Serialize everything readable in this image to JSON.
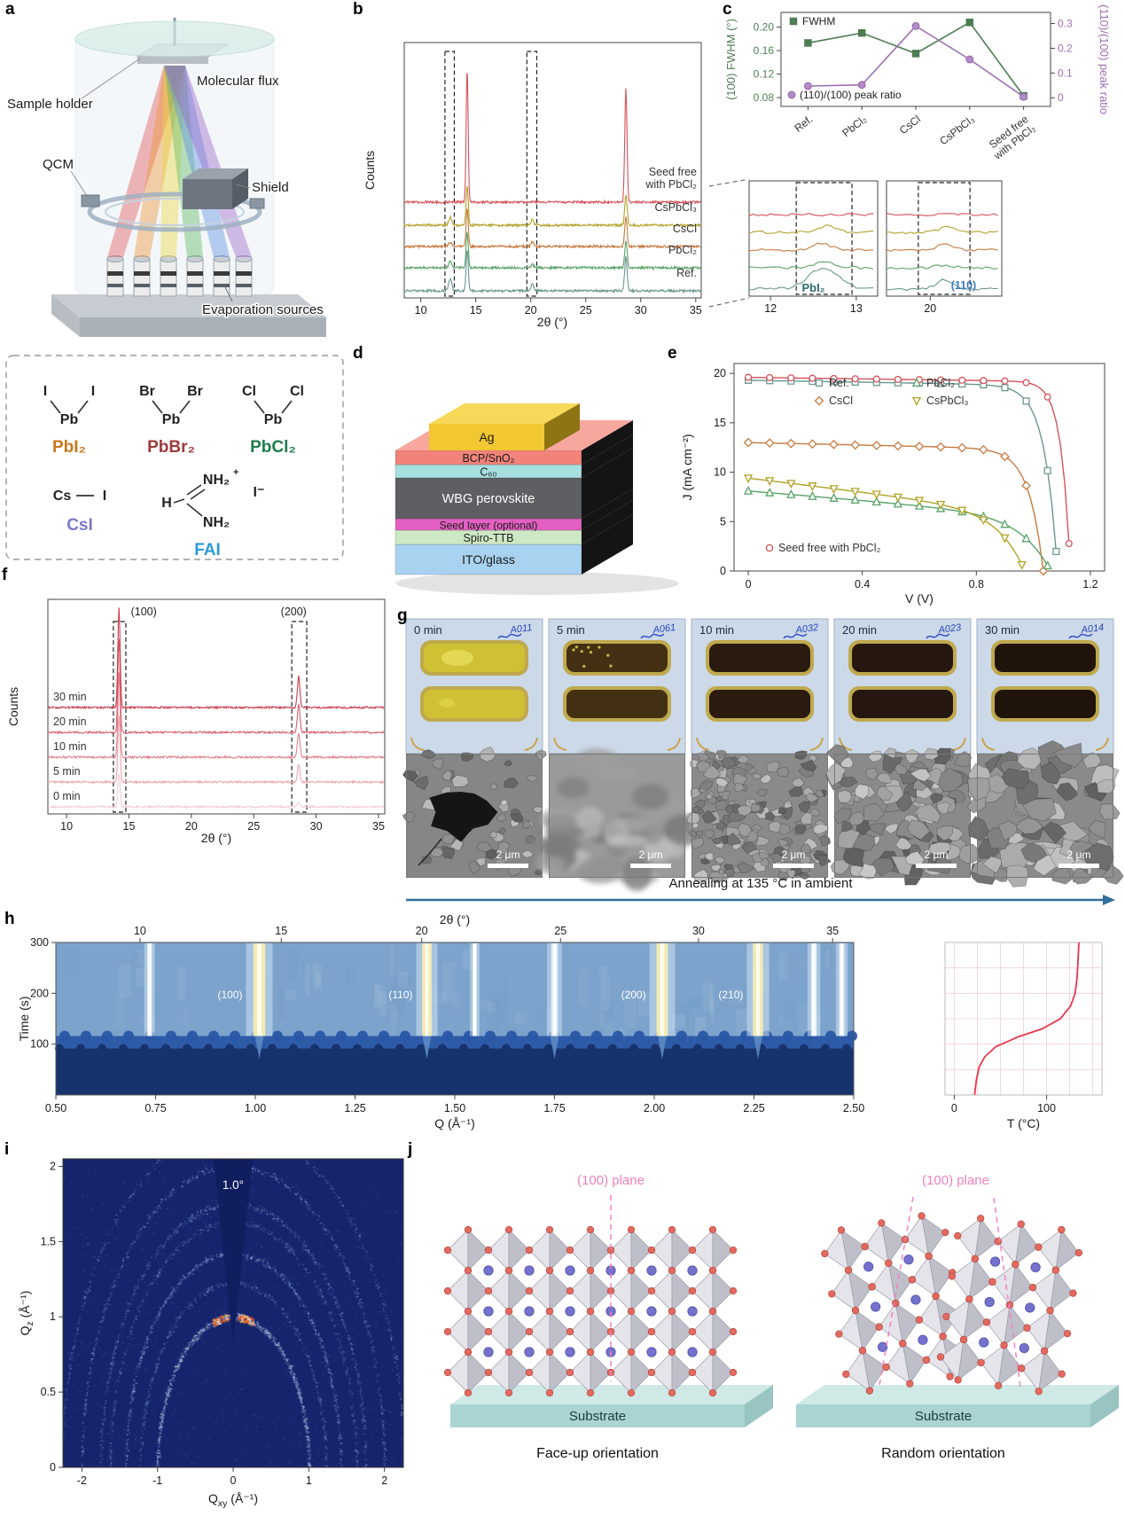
{
  "panels": {
    "a": "a",
    "b": "b",
    "c": "c",
    "d": "d",
    "e": "e",
    "f": "f",
    "g": "g",
    "h": "h",
    "i": "i",
    "j": "j"
  },
  "panel_a": {
    "labels": {
      "sample_holder": "Sample holder",
      "molecular_flux": "Molecular flux",
      "qcm": "QCM",
      "shield": "Shield",
      "evaporation_sources": "Evaporation sources"
    },
    "chemicals": {
      "pbi2": {
        "l": "I",
        "r": "I",
        "m": "Pb",
        "label": "PbI₂",
        "color": "#c8781e"
      },
      "pbbr2": {
        "l": "Br",
        "r": "Br",
        "m": "Pb",
        "label": "PbBr₂",
        "color": "#9c3a3a"
      },
      "pbcl2": {
        "l": "Cl",
        "r": "Cl",
        "m": "Pb",
        "label": "PbCl₂",
        "color": "#1f7d49"
      },
      "csi": {
        "l": "Cs",
        "r": "I",
        "label": "CsI",
        "color": "#7a7ac9"
      },
      "fai": {
        "h": "H",
        "n_top": "NH₂",
        "plus": "+",
        "n_bot": "NH₂",
        "iodide": "I⁻",
        "label": "FAI",
        "color": "#2b9bd7"
      }
    }
  },
  "panel_d": {
    "layers": [
      {
        "name": "ITO/glass",
        "color": "#a8d2f0",
        "light": "#c4e2f8",
        "text": "#1a1a1a",
        "th": 34,
        "fs": 14
      },
      {
        "name": "Spiro-TTB",
        "color": "#cde8c4",
        "light": "#e0f2da",
        "text": "#1a1a1a",
        "th": 16,
        "fs": 12.5
      },
      {
        "name": "Seed layer (optional)",
        "color": "#e360c2",
        "light": "#f085d5",
        "text": "#1a1a1a",
        "th": 13,
        "fs": 12
      },
      {
        "name": "WBG perovskite",
        "color": "#5e5f63",
        "light": "#77787d",
        "text": "#ffffff",
        "th": 46,
        "fs": 14.5
      },
      {
        "name": "C₆₀",
        "color": "#a7dee0",
        "light": "#c2ecee",
        "text": "#1a1a1a",
        "th": 15,
        "fs": 12.5
      },
      {
        "name": "BCP/SnO₂",
        "color": "#f2837a",
        "light": "#f8a79f",
        "text": "#1a1a1a",
        "th": 16,
        "fs": 12.5
      },
      {
        "name": "Ag",
        "color": "#f2c832",
        "light": "#f7d858",
        "text": "#1a1a1a",
        "th": 30,
        "fs": 14
      }
    ]
  },
  "panel_g": {
    "times": [
      "0 min",
      "5 min",
      "10 min",
      "20 min",
      "30 min"
    ],
    "film_colors": [
      "#cfc133",
      "#433012",
      "#2b1b0e",
      "#251710",
      "#201309"
    ],
    "sem_styles": [
      "pinhole",
      "melt",
      "grains_fine",
      "grains_med",
      "grains_coarse"
    ],
    "marks": [
      "A011",
      "A061",
      "A032",
      "A023",
      "A014"
    ],
    "scale_bar": "2 μm",
    "arrow_label": "Annealing at 135 °C in ambient"
  },
  "panel_j": {
    "plane_label": "(100) plane",
    "substrate_label": "Substrate",
    "left_caption": "Face-up orientation",
    "right_caption": "Random orientation",
    "colors": {
      "plane": "#f080c0",
      "oct_light": "#e4e4ea",
      "oct_dark": "#bfbfca",
      "oct_edge": "#9c9ca8",
      "halide": "#e4695e",
      "halide_edge": "#b14a42",
      "cation": "#7472cc",
      "cation_edge": "#4f4da8",
      "sub_top": "#cfe9e7",
      "sub_front": "#a9d4d2",
      "sub_side": "#98c4c2"
    }
  },
  "chart_data": {
    "b": {
      "type": "line",
      "xlabel": "2θ (°)",
      "ylabel": "Counts",
      "xlim": [
        8.5,
        35.5
      ],
      "xticks": [
        10,
        15,
        20,
        25,
        30,
        35
      ],
      "dashed_regions": [
        [
          12.2,
          13.05
        ],
        [
          19.65,
          20.55
        ]
      ],
      "series": [
        {
          "name": "Ref.",
          "color": "#6a9791",
          "base": 0,
          "noise": 1.3,
          "peaks": [
            [
              12.68,
              13,
              0.14
            ],
            [
              14.22,
              46,
              0.1
            ],
            [
              20.15,
              7,
              0.13
            ],
            [
              28.65,
              38,
              0.11
            ]
          ]
        },
        {
          "name": "PbCl₂",
          "color": "#59a368",
          "base": 26,
          "noise": 1.3,
          "peaks": [
            [
              12.68,
              7,
              0.13
            ],
            [
              14.22,
              40,
              0.1
            ],
            [
              20.15,
              4,
              0.12
            ],
            [
              28.65,
              30,
              0.11
            ]
          ]
        },
        {
          "name": "CsCl",
          "color": "#c87a40",
          "base": 50,
          "noise": 1.3,
          "peaks": [
            [
              12.68,
              5,
              0.13
            ],
            [
              14.22,
              42,
              0.1
            ],
            [
              20.15,
              6,
              0.12
            ],
            [
              28.65,
              33,
              0.11
            ]
          ]
        },
        {
          "name": "CsPbCl₃",
          "color": "#b2a32b",
          "base": 74,
          "noise": 1.3,
          "peaks": [
            [
              12.68,
              9,
              0.13
            ],
            [
              14.22,
              44,
              0.1
            ],
            [
              20.15,
              7,
              0.12
            ],
            [
              28.65,
              34,
              0.11
            ]
          ]
        },
        {
          "name": "Seed free|with PbCl₂",
          "color": "#d5525a",
          "base": 100,
          "noise": 1.3,
          "peaks": [
            [
              14.22,
              150,
              0.09
            ],
            [
              28.65,
              128,
              0.1
            ]
          ]
        }
      ]
    },
    "c": {
      "type": "line",
      "categories": [
        "Ref.",
        "PbCl₂",
        "CsCl",
        "CsPbCl₃",
        "Seed free|with PbCl₂"
      ],
      "left": {
        "label": "(100) FWHM (°)",
        "legend": "FWHM",
        "color": "#4f7d52",
        "ticks": [
          0.08,
          0.12,
          0.16,
          0.2
        ],
        "lim": [
          0.065,
          0.225
        ],
        "values": [
          0.173,
          0.19,
          0.155,
          0.208,
          0.083
        ]
      },
      "right": {
        "label": "(110)/(100) peak ratio",
        "legend": "(110)/(100) peak ratio",
        "color": "#9a6fb0",
        "fill": "#b48cc8",
        "ticks": [
          0,
          0.1,
          0.2,
          0.3
        ],
        "lim": [
          -0.035,
          0.345
        ],
        "values": [
          0.047,
          0.052,
          0.29,
          0.155,
          0.004
        ]
      }
    },
    "c_zoom1": {
      "xlim": [
        11.75,
        13.25
      ],
      "xticks": [
        12,
        13
      ],
      "dashed_regions": [
        [
          12.3,
          12.95
        ]
      ],
      "annotation": "PbI₂",
      "annotation_color": "#2e6e6e",
      "series": [
        {
          "name": "Ref.",
          "color": "#6a9791",
          "base": 0,
          "noise": 1.5,
          "peaks": [
            [
              12.62,
              24,
              0.17
            ]
          ]
        },
        {
          "name": "PbCl₂",
          "color": "#59a368",
          "base": 24,
          "noise": 1.5,
          "peaks": [
            [
              12.62,
              6,
              0.12
            ]
          ]
        },
        {
          "name": "CsCl",
          "color": "#c87a40",
          "base": 44,
          "noise": 1.5,
          "peaks": [
            [
              12.6,
              8,
              0.1
            ]
          ]
        },
        {
          "name": "CsPbCl₃",
          "color": "#b2a32b",
          "base": 64,
          "noise": 1.5,
          "peaks": [
            [
              12.65,
              7,
              0.1
            ]
          ]
        },
        {
          "name": "Seed free with PbCl₂",
          "color": "#d5525a",
          "base": 84,
          "noise": 1.5,
          "peaks": []
        }
      ]
    },
    "c_zoom2": {
      "xlim": [
        19.45,
        20.9
      ],
      "xticks": [
        20
      ],
      "dashed_regions": [
        [
          19.85,
          20.5
        ]
      ],
      "annotation": "(110)",
      "annotation_color": "#3b78c2",
      "series": [
        {
          "name": "Ref.",
          "color": "#6a9791",
          "base": 0,
          "noise": 1.5,
          "peaks": [
            [
              20.18,
              11,
              0.1
            ]
          ]
        },
        {
          "name": "PbCl₂",
          "color": "#59a368",
          "base": 24,
          "noise": 1.5,
          "peaks": [
            [
              20.18,
              3,
              0.1
            ]
          ]
        },
        {
          "name": "CsCl",
          "color": "#c87a40",
          "base": 44,
          "noise": 1.5,
          "peaks": [
            [
              20.18,
              7,
              0.09
            ]
          ]
        },
        {
          "name": "CsPbCl₃",
          "color": "#b2a32b",
          "base": 64,
          "noise": 1.5,
          "peaks": [
            [
              20.2,
              6,
              0.09
            ]
          ]
        },
        {
          "name": "Seed free with PbCl₂",
          "color": "#d5525a",
          "base": 84,
          "noise": 1.5,
          "peaks": []
        }
      ]
    },
    "e": {
      "type": "line",
      "xlabel": "V (V)",
      "ylabel": "J (mA cm⁻²)",
      "xlim": [
        -0.05,
        1.25
      ],
      "ylim": [
        0,
        21
      ],
      "xticks": [
        0,
        0.4,
        0.8,
        1.2
      ],
      "yticks": [
        0,
        5,
        10,
        15,
        20
      ],
      "series": [
        {
          "name": "Ref.",
          "color": "#6a9791",
          "marker": "square",
          "jsc": 19.3,
          "voc": 1.085,
          "kw": 0.045,
          "slope": 0.025
        },
        {
          "name": "CsCl",
          "color": "#c87a40",
          "marker": "diamond",
          "jsc": 13.0,
          "voc": 1.035,
          "kw": 0.05,
          "slope": 0.05
        },
        {
          "name": "PbCl₂",
          "color": "#59a368",
          "marker": "triangle",
          "jsc": 8.1,
          "voc": 1.06,
          "kw": 0.1,
          "slope": 0.3
        },
        {
          "name": "CsPbCl₃",
          "color": "#b2a32b",
          "marker": "tridown",
          "jsc": 9.4,
          "voc": 0.97,
          "kw": 0.09,
          "slope": 0.38
        },
        {
          "name": "Seed free with PbCl₂",
          "color": "#d5525a",
          "marker": "circle",
          "jsc": 19.6,
          "voc": 1.13,
          "kw": 0.032,
          "slope": 0.02
        }
      ],
      "legend_grid": [
        [
          "Ref.",
          "PbCl₂"
        ],
        [
          "CsCl",
          "CsPbCl₃"
        ]
      ],
      "legend_bottom": "Seed free with PbCl₂"
    },
    "f": {
      "type": "line",
      "xlabel": "2θ (°)",
      "ylabel": "Counts",
      "xlim": [
        8.5,
        35.5
      ],
      "xticks": [
        10,
        15,
        20,
        25,
        30,
        35
      ],
      "dashed_regions": [
        [
          13.75,
          14.75
        ],
        [
          28.05,
          29.25
        ]
      ],
      "peak_labels": [
        {
          "text": "(100)",
          "x": 15.15,
          "anchor": "start"
        },
        {
          "text": "(200)",
          "x": 28.2,
          "anchor": "middle"
        }
      ],
      "series": [
        {
          "name": "0 min",
          "color": "#f3cdd1",
          "base": 0,
          "noise": 1.1,
          "peaks": [
            [
              14.2,
              38,
              0.09
            ],
            [
              28.6,
              5,
              0.1
            ]
          ]
        },
        {
          "name": "5 min",
          "color": "#eca6ad",
          "base": 28,
          "noise": 1.1,
          "peaks": [
            [
              14.2,
              75,
              0.09
            ],
            [
              28.6,
              20,
              0.1
            ]
          ]
        },
        {
          "name": "10 min",
          "color": "#e3838e",
          "base": 56,
          "noise": 1.1,
          "peaks": [
            [
              14.2,
              95,
              0.09
            ],
            [
              28.6,
              28,
              0.1
            ]
          ]
        },
        {
          "name": "20 min",
          "color": "#d9606e",
          "base": 84,
          "noise": 1.1,
          "peaks": [
            [
              14.2,
              105,
              0.09
            ],
            [
              28.6,
              32,
              0.1
            ]
          ]
        },
        {
          "name": "30 min",
          "color": "#c93d4c",
          "base": 112,
          "noise": 1.1,
          "peaks": [
            [
              14.2,
              112,
              0.09
            ],
            [
              28.6,
              35,
              0.1
            ]
          ]
        }
      ]
    },
    "h": {
      "type": "heatmap",
      "top_label": "2θ (°)",
      "top_ticks": [
        {
          "t": "10",
          "q": 0.711
        },
        {
          "t": "15",
          "q": 1.065
        },
        {
          "t": "20",
          "q": 1.417
        },
        {
          "t": "25",
          "q": 1.765
        },
        {
          "t": "30",
          "q": 2.111
        },
        {
          "t": "35",
          "q": 2.447
        }
      ],
      "xlabel": "Q (Å⁻¹)",
      "ylabel": "Time (s)",
      "xlim": [
        0.5,
        2.5
      ],
      "ylim": [
        0,
        300
      ],
      "xticks": [
        0.5,
        0.75,
        1,
        1.25,
        1.5,
        1.75,
        2,
        2.25,
        2.5
      ],
      "yticks": [
        100,
        200,
        300
      ],
      "transition_time": 95,
      "streaks": [
        {
          "q": 0.735,
          "i": 0.25
        },
        {
          "q": 1.01,
          "i": 1.0,
          "label": "(100)"
        },
        {
          "q": 1.43,
          "i": 0.75,
          "label": "(110)"
        },
        {
          "q": 1.55,
          "i": 0.2
        },
        {
          "q": 1.75,
          "i": 0.45
        },
        {
          "q": 2.02,
          "i": 0.95,
          "label": "(200)"
        },
        {
          "q": 2.26,
          "i": 0.8,
          "label": "(210)"
        },
        {
          "q": 2.4,
          "i": 0.35
        },
        {
          "q": 2.47,
          "i": 0.3
        }
      ],
      "colors": {
        "deep": "#16336e",
        "mid": "#2a57a5",
        "upper": "#7ba3cb",
        "tip": "#5b8ac2"
      }
    },
    "h_temp": {
      "type": "line",
      "xlabel": "T (°C)",
      "xticks": [
        0,
        100
      ],
      "xlim": [
        -10,
        160
      ],
      "color": "#e8384f",
      "points": [
        [
          22,
          0
        ],
        [
          24,
          30
        ],
        [
          27,
          55
        ],
        [
          33,
          75
        ],
        [
          45,
          95
        ],
        [
          70,
          115
        ],
        [
          95,
          130
        ],
        [
          115,
          150
        ],
        [
          126,
          175
        ],
        [
          131,
          200
        ],
        [
          133,
          230
        ],
        [
          134,
          260
        ],
        [
          135,
          300
        ]
      ]
    },
    "i": {
      "type": "scatter-rings",
      "x_main": "Q",
      "x_sub": "xy",
      "y_main": "Q",
      "y_sub": "z",
      "unit": " (Å⁻¹)",
      "xlim": [
        -2.25,
        2.25
      ],
      "ylim": [
        0,
        2.05
      ],
      "xticks": [
        -2,
        -1,
        0,
        1,
        2
      ],
      "yticks": [
        0,
        0.5,
        1.0,
        1.5,
        2.0
      ],
      "annotation": "1.0°",
      "bg": "#16246e",
      "rings": [
        {
          "q": 1.0,
          "i": 1.0,
          "hot": true
        },
        {
          "q": 1.225,
          "i": 0.25
        },
        {
          "q": 1.42,
          "i": 0.6
        },
        {
          "q": 1.63,
          "i": 0.3
        },
        {
          "q": 1.75,
          "i": 0.45
        },
        {
          "q": 2.0,
          "i": 0.5
        },
        {
          "q": 2.26,
          "i": 0.4
        }
      ]
    }
  }
}
